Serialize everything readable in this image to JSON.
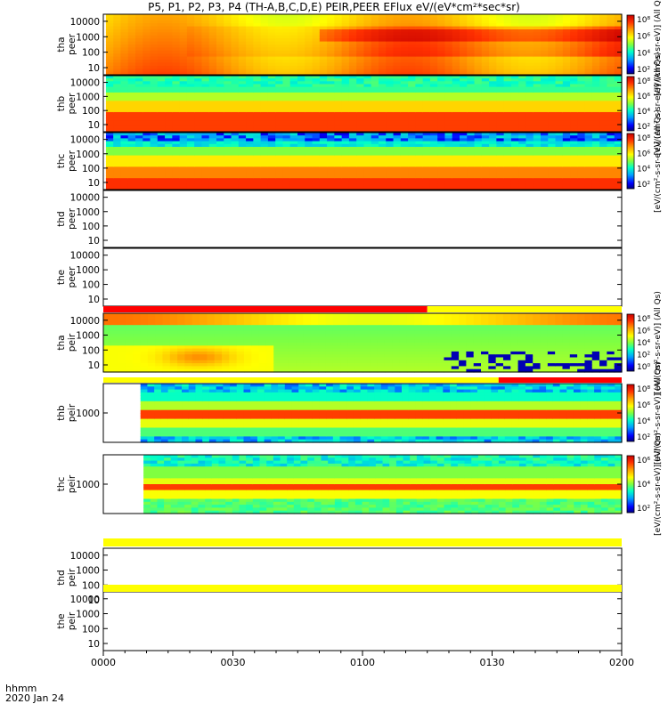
{
  "chart_data": {
    "type": "heatmap",
    "title": "P5, P1, P2, P3, P4 (TH-A,B,C,D,E) PEIR,PEER EFlux eV/(eV*cm²*sec*sr)",
    "x_axis": {
      "title_lines": [
        "hhmm",
        "2020 Jan 24"
      ],
      "ticks": [
        "0000",
        "0030",
        "0100",
        "0130",
        "0200"
      ],
      "range_minutes": [
        0,
        120
      ]
    },
    "panels": [
      {
        "ylabel": [
          "tha",
          "peer"
        ],
        "yticks": [
          "10",
          "100",
          "1000",
          "10000"
        ],
        "has_data": true,
        "data_start_min": 0.6,
        "colorbar": true,
        "colorbar_ticks": [
          "10²",
          "10⁴",
          "10⁶",
          "10⁸"
        ],
        "colorbar_label": "[eV/(cm²-s-sr-eV)] (All Qs)"
      },
      {
        "ylabel": [
          "thb",
          "peer"
        ],
        "yticks": [
          "10",
          "100",
          "1000",
          "10000"
        ],
        "has_data": true,
        "data_start_min": 0.6,
        "colorbar": true,
        "colorbar_ticks": [
          "10²",
          "10⁴",
          "10⁶",
          "10⁸"
        ],
        "colorbar_label": "[eV/(cm²-s-sr-eV)] (All Qs)"
      },
      {
        "ylabel": [
          "thc",
          "peer"
        ],
        "yticks": [
          "10",
          "100",
          "1000",
          "10000"
        ],
        "has_data": true,
        "data_start_min": 0.6,
        "colorbar": true,
        "colorbar_ticks": [
          "10²",
          "10⁴",
          "10⁶",
          "10⁸"
        ],
        "colorbar_label": "[eV/(cm²-s-sr-eV)] (All Qs)"
      },
      {
        "ylabel": [
          "thd",
          "peer"
        ],
        "yticks": [
          "10",
          "100",
          "1000",
          "10000"
        ],
        "has_data": false
      },
      {
        "ylabel": [
          "the",
          "peer"
        ],
        "yticks": [
          "10",
          "100",
          "1000",
          "10000"
        ],
        "has_data": false
      },
      {
        "ylabel": [
          "tha",
          "peir"
        ],
        "yticks": [
          "10",
          "100",
          "1000",
          "10000"
        ],
        "has_data": true,
        "data_start_min": 0.0,
        "colorbar": true,
        "colorbar_ticks": [
          "10⁰",
          "10²",
          "10⁴",
          "10⁶",
          "10⁸"
        ],
        "colorbar_label": "[eV/(cm²-s-sr-eV)] (All Qs)"
      },
      {
        "ylabel": [
          "thb",
          "peir"
        ],
        "yticks": [
          "1000"
        ],
        "has_data": true,
        "data_start_min": 8.6,
        "colorbar": true,
        "colorbar_ticks": [
          "10²",
          "10⁴",
          "10⁶",
          "10⁸"
        ],
        "colorbar_label": "[eV/(cm²-s-sr-eV)] (All Qs)"
      },
      {
        "ylabel": [
          "thc",
          "peir"
        ],
        "yticks": [
          "1000"
        ],
        "has_data": true,
        "data_start_min": 9.3,
        "colorbar": true,
        "colorbar_ticks": [
          "10²",
          "10⁴",
          "10⁶"
        ],
        "colorbar_label": "[eV/(cm²-s-sr-eV)] (All Qs)"
      },
      {
        "ylabel": [
          "thd",
          "peir"
        ],
        "yticks": [
          "10",
          "100",
          "1000",
          "10000"
        ],
        "has_data": false
      },
      {
        "ylabel": [
          "the",
          "peir"
        ],
        "yticks": [
          "10",
          "100",
          "1000",
          "10000"
        ],
        "has_data": false
      }
    ],
    "status_bars": [
      {
        "after_panel": 4,
        "segments": [
          {
            "from_min": 0,
            "to_min": 75,
            "color": "#ff0000"
          },
          {
            "from_min": 75,
            "to_min": 120,
            "color": "#ffff00"
          }
        ]
      },
      {
        "after_panel": 5,
        "segments": [
          {
            "from_min": 0,
            "to_min": 91.5,
            "color": "#ffff00"
          },
          {
            "from_min": 91.5,
            "to_min": 120,
            "color": "#ff0000"
          }
        ]
      },
      {
        "after_panel": 7,
        "segments": [
          {
            "from_min": 0,
            "to_min": 120,
            "color": "#ffff00"
          }
        ]
      },
      {
        "after_panel": 8,
        "segments": [
          {
            "from_min": 0,
            "to_min": 120,
            "color": "#ffff00"
          }
        ]
      }
    ],
    "colors": {
      "colormap": [
        "#000080",
        "#0000ff",
        "#00a0ff",
        "#00ffc8",
        "#80ff40",
        "#ffff00",
        "#ffa000",
        "#ff3000",
        "#c80000"
      ]
    }
  }
}
